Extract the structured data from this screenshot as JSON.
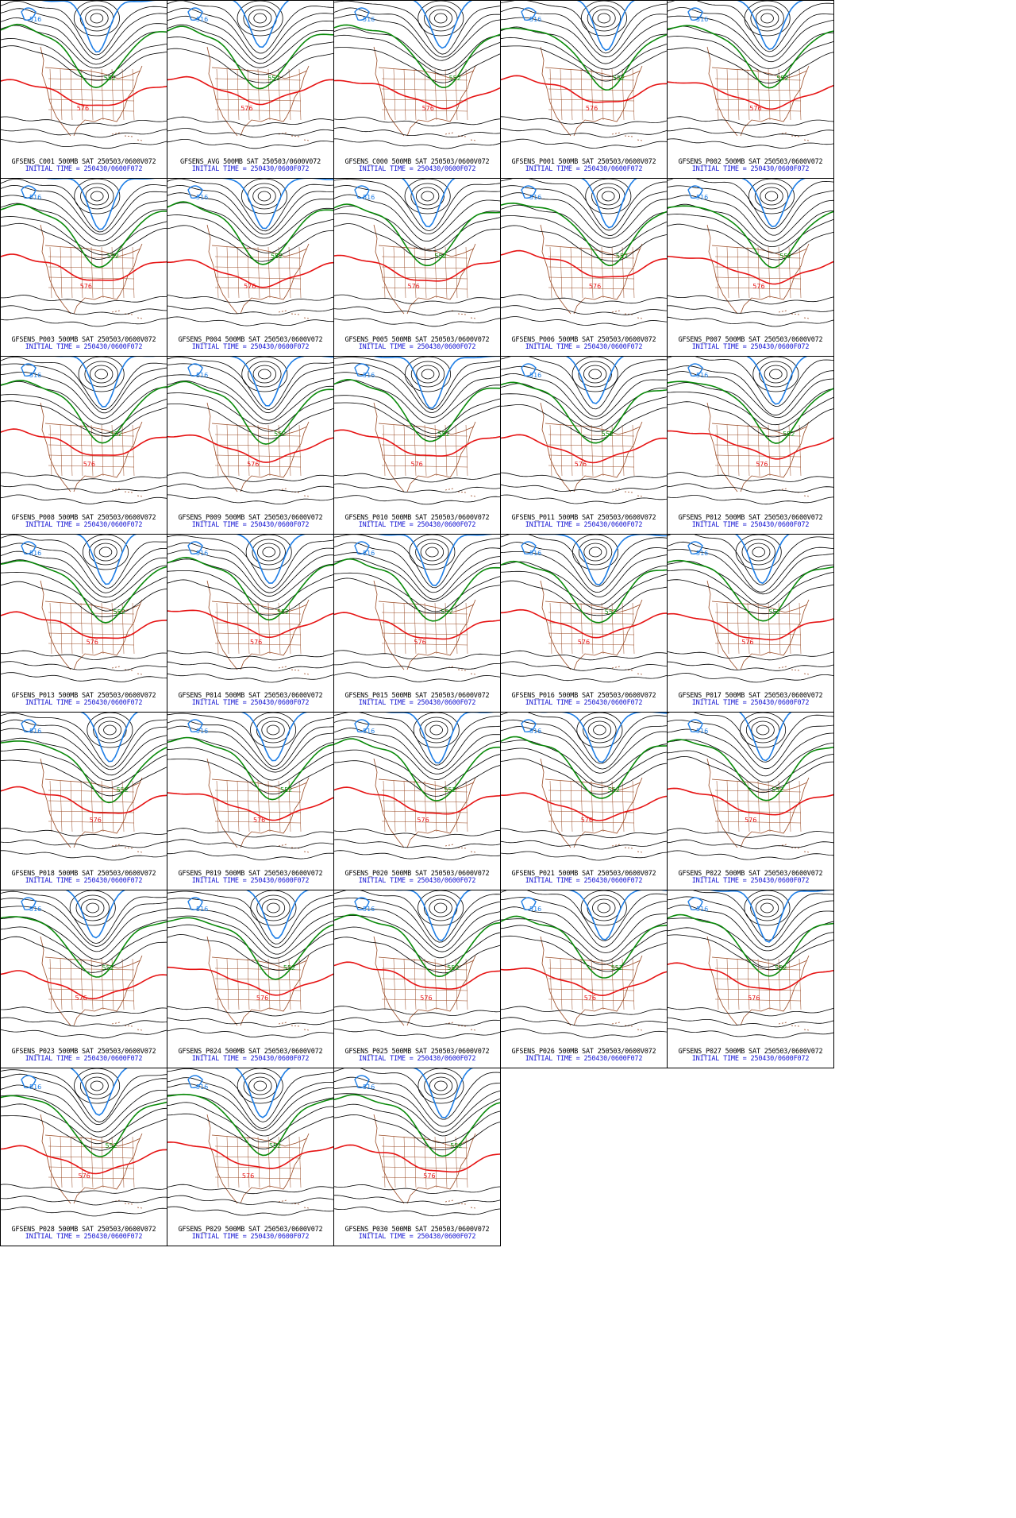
{
  "figure": {
    "variable": "500MB",
    "valid": "SAT 250503/0600V072",
    "init_label": "INITIAL TIME = 250430/0600F072"
  },
  "contour_labels": {
    "cold": "516",
    "mid": "552",
    "warm": "576"
  },
  "colors": {
    "cold_contour": "#1e7ee6",
    "mid_contour": "#0a8a0a",
    "warm_contour": "#e61414",
    "other_contours": "#000000",
    "geography": "#9a4a24",
    "init_text": "#1414d2"
  },
  "panels": [
    {
      "member": "C001",
      "title": "GFSENS_C001 500MB SAT 250503/0600V072",
      "init": "INITIAL TIME = 250430/0600F072"
    },
    {
      "member": "AVG",
      "title": "GFSENS_AVG 500MB SAT 250503/0600V072",
      "init": "INITIAL TIME = 250430/0600F072"
    },
    {
      "member": "C000",
      "title": "GFSENS_C000 500MB SAT 250503/0600V072",
      "init": "INITIAL TIME = 250430/0600F072"
    },
    {
      "member": "P001",
      "title": "GFSENS_P001 500MB SAT 250503/0600V072",
      "init": "INITIAL TIME = 250430/0600F072"
    },
    {
      "member": "P002",
      "title": "GFSENS_P002 500MB SAT 250503/0600V072",
      "init": "INITIAL TIME = 250430/0600F072"
    },
    {
      "member": "P003",
      "title": "GFSENS_P003 500MB SAT 250503/0600V072",
      "init": "INITIAL TIME = 250430/0600F072"
    },
    {
      "member": "P004",
      "title": "GFSENS_P004 500MB SAT 250503/0600V072",
      "init": "INITIAL TIME = 250430/0600F072"
    },
    {
      "member": "P005",
      "title": "GFSENS_P005 500MB SAT 250503/0600V072",
      "init": "INITIAL TIME = 250430/0600F072"
    },
    {
      "member": "P006",
      "title": "GFSENS_P006 500MB SAT 250503/0600V072",
      "init": "INITIAL TIME = 250430/0600F072"
    },
    {
      "member": "P007",
      "title": "GFSENS_P007 500MB SAT 250503/0600V072",
      "init": "INITIAL TIME = 250430/0600F072"
    },
    {
      "member": "P008",
      "title": "GFSENS_P008 500MB SAT 250503/0600V072",
      "init": "INITIAL TIME = 250430/0600F072"
    },
    {
      "member": "P009",
      "title": "GFSENS_P009 500MB SAT 250503/0600V072",
      "init": "INITIAL TIME = 250430/0600F072"
    },
    {
      "member": "P010",
      "title": "GFSENS_P010 500MB SAT 250503/0600V072",
      "init": "INITIAL TIME = 250430/0600F072"
    },
    {
      "member": "P011",
      "title": "GFSENS_P011 500MB SAT 250503/0600V072",
      "init": "INITIAL TIME = 250430/0600F072"
    },
    {
      "member": "P012",
      "title": "GFSENS_P012 500MB SAT 250503/0600V072",
      "init": "INITIAL TIME = 250430/0600F072"
    },
    {
      "member": "P013",
      "title": "GFSENS_P013 500MB SAT 250503/0600V072",
      "init": "INITIAL TIME = 250430/0600F072"
    },
    {
      "member": "P014",
      "title": "GFSENS_P014 500MB SAT 250503/0600V072",
      "init": "INITIAL TIME = 250430/0600F072"
    },
    {
      "member": "P015",
      "title": "GFSENS_P015 500MB SAT 250503/0600V072",
      "init": "INITIAL TIME = 250430/0600F072"
    },
    {
      "member": "P016",
      "title": "GFSENS_P016 500MB SAT 250503/0600V072",
      "init": "INITIAL TIME = 250430/0600F072"
    },
    {
      "member": "P017",
      "title": "GFSENS_P017 500MB SAT 250503/0600V072",
      "init": "INITIAL TIME = 250430/0600F072"
    },
    {
      "member": "P018",
      "title": "GFSENS_P018 500MB SAT 250503/0600V072",
      "init": "INITIAL TIME = 250430/0600F072"
    },
    {
      "member": "P019",
      "title": "GFSENS_P019 500MB SAT 250503/0600V072",
      "init": "INITIAL TIME = 250430/0600F072"
    },
    {
      "member": "P020",
      "title": "GFSENS_P020 500MB SAT 250503/0600V072",
      "init": "INITIAL TIME = 250430/0600F072"
    },
    {
      "member": "P021",
      "title": "GFSENS_P021 500MB SAT 250503/0600V072",
      "init": "INITIAL TIME = 250430/0600F072"
    },
    {
      "member": "P022",
      "title": "GFSENS_P022 500MB SAT 250503/0600V072",
      "init": "INITIAL TIME = 250430/0600F072"
    },
    {
      "member": "P023",
      "title": "GFSENS_P023 500MB SAT 250503/0600V072",
      "init": "INITIAL TIME = 250430/0600F072"
    },
    {
      "member": "P024",
      "title": "GFSENS_P024 500MB SAT 250503/0600V072",
      "init": "INITIAL TIME = 250430/0600F072"
    },
    {
      "member": "P025",
      "title": "GFSENS_P025 500MB SAT 250503/0600V072",
      "init": "INITIAL TIME = 250430/0600F072"
    },
    {
      "member": "P026",
      "title": "GFSENS_P026 500MB SAT 250503/0600V072",
      "init": "INITIAL TIME = 250430/0600F072"
    },
    {
      "member": "P027",
      "title": "GFSENS_P027 500MB SAT 250503/0600V072",
      "init": "INITIAL TIME = 250430/0600F072"
    },
    {
      "member": "P028",
      "title": "GFSENS_P028 500MB SAT 250503/0600V072",
      "init": "INITIAL TIME = 250430/0600F072"
    },
    {
      "member": "P029",
      "title": "GFSENS_P029 500MB SAT 250503/0600V072",
      "init": "INITIAL TIME = 250430/0600F072"
    },
    {
      "member": "P030",
      "title": "GFSENS_P030 500MB SAT 250503/0600V072",
      "init": "INITIAL TIME = 250430/0600F072"
    }
  ]
}
